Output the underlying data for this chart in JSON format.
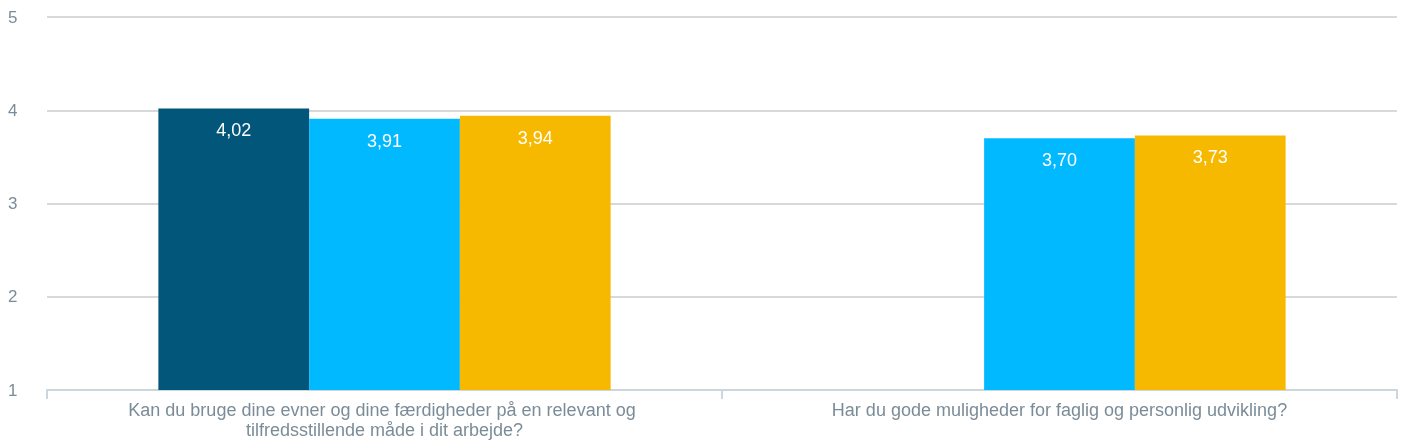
{
  "chart_data": {
    "type": "bar",
    "categories": [
      "Kan du bruge dine evner og dine færdigheder på en relevant og tilfredsstillende måde i dit arbejde?",
      "Har du gode muligheder for faglig og personlig udvikling?"
    ],
    "series": [
      {
        "color": "#02567a",
        "values": [
          4.02,
          null
        ],
        "value_labels": [
          "4,02",
          null
        ]
      },
      {
        "color": "#00b9ff",
        "values": [
          3.91,
          3.7
        ],
        "value_labels": [
          "3,91",
          "3,70"
        ]
      },
      {
        "color": "#f7b900",
        "values": [
          3.94,
          3.73
        ],
        "value_labels": [
          "3,94",
          "3,73"
        ]
      }
    ],
    "ylim": [
      1,
      5
    ],
    "yticks": [
      1,
      2,
      3,
      4,
      5
    ],
    "grid": "y"
  }
}
